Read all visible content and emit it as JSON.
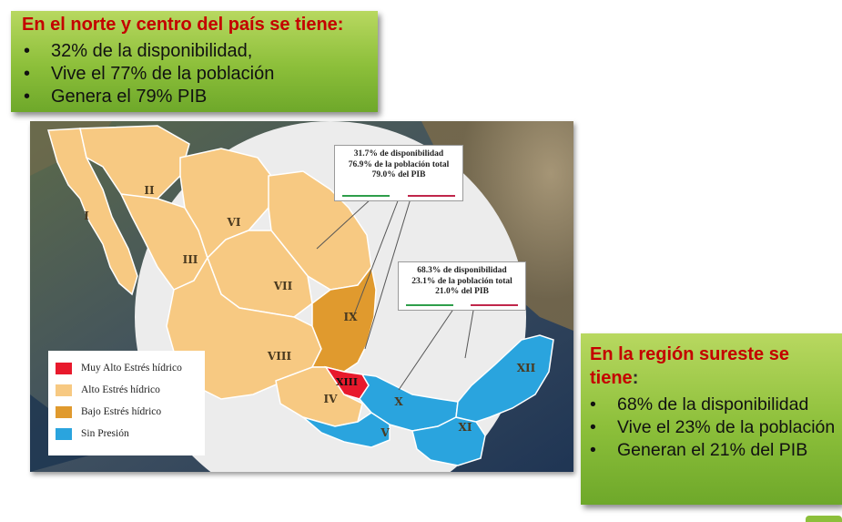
{
  "north_box": {
    "title": "En el norte y centro del país se tiene:",
    "items": [
      "32% de la disponibilidad,",
      "Vive el 77% de la población",
      "Genera el 79% PIB"
    ]
  },
  "south_box": {
    "title": "En la región sureste se tiene",
    "title_colon": ":",
    "items": [
      "68%  de la disponibilidad",
      "Vive el 23% de la población",
      "Generan el 21% del PIB"
    ]
  },
  "map": {
    "region_labels": [
      "I",
      "II",
      "III",
      "VI",
      "VII",
      "VIII",
      "IX",
      "IV",
      "XIII",
      "X",
      "V",
      "XI",
      "XII"
    ],
    "callout_north": {
      "lines": [
        "31.7% de disponibilidad",
        "76.9% de la población total",
        "79.0% del PIB"
      ]
    },
    "callout_south": {
      "lines": [
        "68.3% de disponibilidad",
        "23.1% de la población total",
        "21.0% del PIB"
      ]
    },
    "legend": [
      {
        "label": "Muy Alto Estrés hídrico",
        "color": "#e8192c"
      },
      {
        "label": "Alto Estrés hídrico",
        "color": "#f7c982"
      },
      {
        "label": "Bajo Estrés hídrico",
        "color": "#e09a2e"
      },
      {
        "label": "Sin Presión",
        "color": "#2aa4de"
      }
    ]
  },
  "colors": {
    "box_green": "#8cbf3a",
    "title_red": "#c40000",
    "high_stress": "#f7c982",
    "low_stress": "#e09a2e",
    "very_high_stress": "#e8192c",
    "no_pressure": "#2aa4de"
  }
}
